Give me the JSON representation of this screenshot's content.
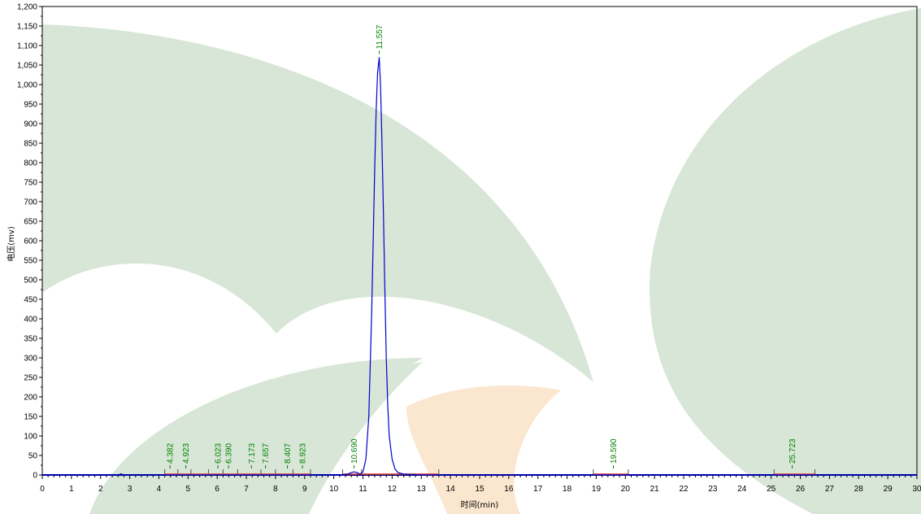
{
  "chart_data": {
    "type": "line",
    "xlabel": "时间(min)",
    "ylabel": "电压(mv)",
    "xlim": [
      0,
      30
    ],
    "ylim": [
      0,
      1200
    ],
    "x_ticks": [
      0,
      1,
      2,
      3,
      4,
      5,
      6,
      7,
      8,
      9,
      10,
      11,
      12,
      13,
      14,
      15,
      16,
      17,
      18,
      19,
      20,
      21,
      22,
      23,
      24,
      25,
      26,
      27,
      28,
      29,
      30
    ],
    "y_ticks": [
      0,
      50,
      100,
      150,
      200,
      250,
      300,
      350,
      400,
      450,
      500,
      550,
      600,
      650,
      700,
      750,
      800,
      850,
      900,
      950,
      1000,
      1050,
      1100,
      1150,
      1200
    ],
    "x_tick_labels": [
      "0",
      "1",
      "2",
      "3",
      "4",
      "5",
      "6",
      "7",
      "8",
      "9",
      "10",
      "11",
      "12",
      "13",
      "14",
      "15",
      "16",
      "17",
      "18",
      "19",
      "20",
      "21",
      "22",
      "23",
      "24",
      "25",
      "26",
      "27",
      "28",
      "29",
      "30"
    ],
    "y_tick_labels": [
      "0",
      "50",
      "100",
      "150",
      "200",
      "250",
      "300",
      "350",
      "400",
      "450",
      "500",
      "550",
      "600",
      "650",
      "700",
      "750",
      "800",
      "850",
      "900",
      "950",
      "1,000",
      "1,050",
      "1,100",
      "1,150",
      "1,200"
    ],
    "grid": false,
    "series": [
      {
        "color": "#0000cc",
        "x": [
          0,
          2.6,
          2.7,
          2.8,
          4.0,
          10.3,
          10.5,
          10.6,
          10.69,
          10.8,
          10.9,
          11.0,
          11.1,
          11.2,
          11.3,
          11.35,
          11.4,
          11.45,
          11.5,
          11.557,
          11.6,
          11.65,
          11.7,
          11.75,
          11.8,
          11.85,
          11.9,
          12.0,
          12.1,
          12.2,
          12.4,
          13.0,
          19.5,
          25.7,
          30
        ],
        "y": [
          0,
          0,
          3,
          0,
          0,
          0,
          3,
          6,
          8,
          6,
          2,
          8,
          40,
          150,
          420,
          600,
          780,
          930,
          1030,
          1070,
          1000,
          860,
          680,
          480,
          300,
          180,
          100,
          40,
          15,
          6,
          2,
          0,
          0,
          0,
          0
        ]
      }
    ],
    "peaks": [
      {
        "rt": 4.382,
        "label": "4.382"
      },
      {
        "rt": 4.923,
        "label": "4.923"
      },
      {
        "rt": 6.023,
        "label": "6.023"
      },
      {
        "rt": 6.39,
        "label": "6.390"
      },
      {
        "rt": 7.173,
        "label": "7.173"
      },
      {
        "rt": 7.657,
        "label": "7.657"
      },
      {
        "rt": 8.407,
        "label": "8.407"
      },
      {
        "rt": 8.923,
        "label": "8.923"
      },
      {
        "rt": 10.69,
        "label": "10.690"
      },
      {
        "rt": 11.557,
        "label": "11.557",
        "height": 1070
      },
      {
        "rt": 19.59,
        "label": "19.590"
      },
      {
        "rt": 25.723,
        "label": "25.723"
      }
    ],
    "baseline_segments": [
      [
        4.2,
        9.2
      ],
      [
        10.3,
        13.6
      ],
      [
        18.9,
        20.1
      ],
      [
        25.1,
        26.5
      ]
    ],
    "baseline_marks": [
      4.2,
      4.65,
      5.1,
      5.7,
      6.2,
      6.7,
      7.5,
      8.0,
      8.6,
      9.2,
      10.3,
      10.95,
      13.6,
      18.9,
      20.1,
      25.1,
      26.5
    ],
    "colors": {
      "signal": "#0000cc",
      "peak_label": "#008000",
      "baseline": "#d93a2b",
      "axis_line": "#000080",
      "background_leaf": "#d7e6d6",
      "background_accent": "#fbe6cf"
    }
  }
}
